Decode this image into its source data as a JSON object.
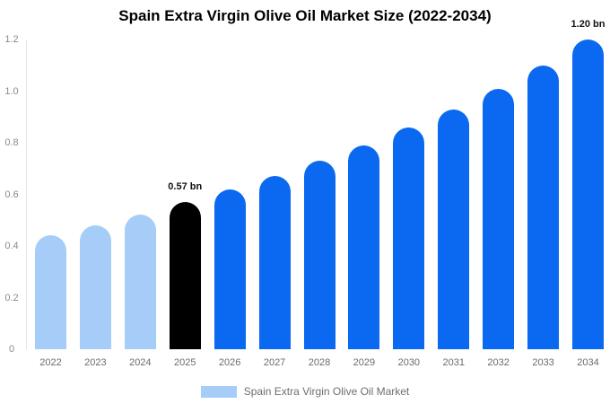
{
  "title": "Spain Extra Virgin Olive Oil Market Size (2022-2034)",
  "colors": {
    "background": "#ffffff",
    "historical_bar": "#a5cdf8",
    "current_bar": "#000000",
    "forecast_bar": "#0a69f0",
    "axis_line": "#e4e4e4",
    "ytick_label": "#8a8a8a",
    "xtick_label": "#6b6b6b",
    "data_label": "#111111",
    "legend_text": "#6e6e6e",
    "title_text": "#000000"
  },
  "legend": {
    "label": "Spain Extra Virgin Olive Oil Market",
    "swatch_color": "#a5cdf8"
  },
  "chart_data": {
    "type": "bar",
    "title": "Spain Extra Virgin Olive Oil Market Size (2022-2034)",
    "xlabel": "",
    "ylabel": "",
    "unit": "bn",
    "categories": [
      "2022",
      "2023",
      "2024",
      "2025",
      "2026",
      "2027",
      "2028",
      "2029",
      "2030",
      "2031",
      "2032",
      "2033",
      "2034"
    ],
    "values": [
      0.44,
      0.48,
      0.52,
      0.57,
      0.62,
      0.67,
      0.73,
      0.79,
      0.86,
      0.93,
      1.01,
      1.1,
      1.2
    ],
    "bar_roles": [
      "historical",
      "historical",
      "historical",
      "current",
      "forecast",
      "forecast",
      "forecast",
      "forecast",
      "forecast",
      "forecast",
      "forecast",
      "forecast",
      "forecast"
    ],
    "annotations": [
      {
        "category": "2025",
        "text": "0.57 bn"
      },
      {
        "category": "2034",
        "text": "1.20 bn"
      }
    ],
    "ylim": [
      0,
      1.2
    ],
    "ytick_values": [
      0,
      0.2,
      0.4,
      0.6,
      0.8,
      1.0,
      1.2
    ],
    "ytick_labels": [
      "0",
      "0.2",
      "0.4",
      "0.6",
      "0.8",
      "1.0",
      "1.2"
    ],
    "grid": false,
    "legend_position": "bottom"
  }
}
